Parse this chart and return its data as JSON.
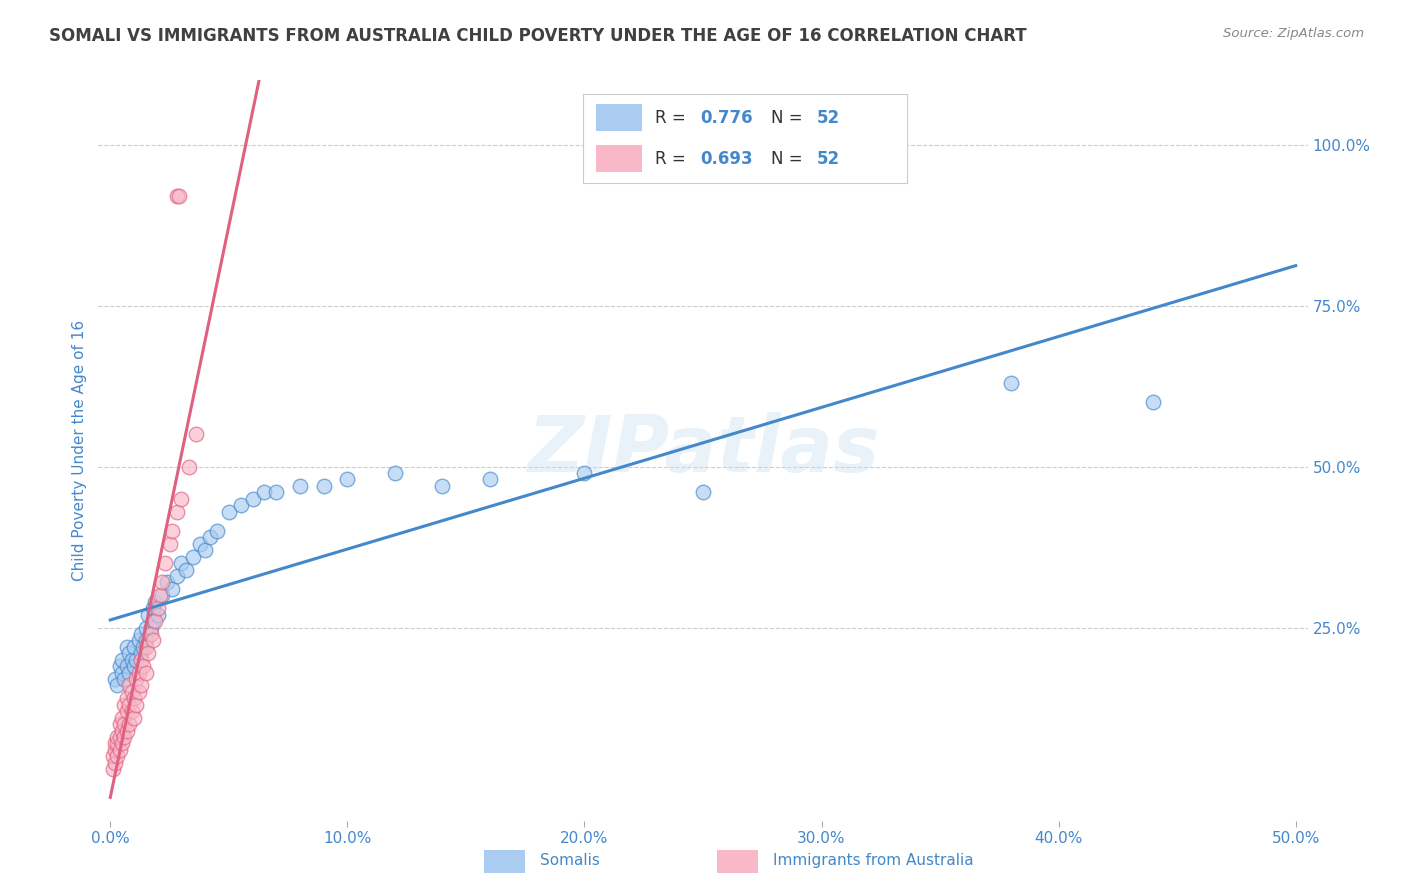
{
  "title": "SOMALI VS IMMIGRANTS FROM AUSTRALIA CHILD POVERTY UNDER THE AGE OF 16 CORRELATION CHART",
  "source": "Source: ZipAtlas.com",
  "ylabel_label": "Child Poverty Under the Age of 16",
  "x_tick_labels": [
    "0.0%",
    "10.0%",
    "20.0%",
    "30.0%",
    "40.0%",
    "50.0%"
  ],
  "x_tick_vals": [
    0.0,
    0.1,
    0.2,
    0.3,
    0.4,
    0.5
  ],
  "y_tick_labels": [
    "100.0%",
    "75.0%",
    "50.0%",
    "25.0%"
  ],
  "y_tick_vals": [
    1.0,
    0.75,
    0.5,
    0.25
  ],
  "xlim": [
    -0.005,
    0.505
  ],
  "ylim": [
    -0.05,
    1.1
  ],
  "somali_R": "0.776",
  "somali_N": "52",
  "australia_R": "0.693",
  "australia_N": "52",
  "legend_label_somali": "Somalis",
  "legend_label_australia": "Immigrants from Australia",
  "color_somali": "#aaccf0",
  "color_australia": "#f8b8c8",
  "line_color_somali": "#4488cc",
  "line_color_australia": "#e06080",
  "watermark": "ZIPatlas",
  "background_color": "#ffffff",
  "grid_color": "#cccccc",
  "title_color": "#404040",
  "axis_label_color": "#4488cc",
  "tick_label_color": "#4488cc",
  "somali_x": [
    0.002,
    0.003,
    0.004,
    0.005,
    0.005,
    0.006,
    0.007,
    0.007,
    0.008,
    0.008,
    0.009,
    0.01,
    0.01,
    0.011,
    0.012,
    0.013,
    0.013,
    0.014,
    0.015,
    0.015,
    0.016,
    0.017,
    0.018,
    0.018,
    0.019,
    0.02,
    0.022,
    0.024,
    0.026,
    0.028,
    0.03,
    0.032,
    0.035,
    0.038,
    0.04,
    0.042,
    0.045,
    0.05,
    0.055,
    0.06,
    0.065,
    0.07,
    0.08,
    0.09,
    0.1,
    0.12,
    0.14,
    0.16,
    0.2,
    0.25,
    0.38,
    0.44
  ],
  "somali_y": [
    0.17,
    0.16,
    0.19,
    0.18,
    0.2,
    0.17,
    0.19,
    0.22,
    0.18,
    0.21,
    0.2,
    0.19,
    0.22,
    0.2,
    0.23,
    0.21,
    0.24,
    0.22,
    0.25,
    0.23,
    0.27,
    0.25,
    0.28,
    0.26,
    0.29,
    0.27,
    0.3,
    0.32,
    0.31,
    0.33,
    0.35,
    0.34,
    0.36,
    0.38,
    0.37,
    0.39,
    0.4,
    0.43,
    0.44,
    0.45,
    0.46,
    0.46,
    0.47,
    0.47,
    0.48,
    0.49,
    0.47,
    0.48,
    0.49,
    0.46,
    0.63,
    0.6
  ],
  "australia_x": [
    0.001,
    0.001,
    0.002,
    0.002,
    0.002,
    0.003,
    0.003,
    0.003,
    0.004,
    0.004,
    0.004,
    0.005,
    0.005,
    0.005,
    0.006,
    0.006,
    0.006,
    0.007,
    0.007,
    0.007,
    0.008,
    0.008,
    0.008,
    0.009,
    0.009,
    0.01,
    0.01,
    0.011,
    0.011,
    0.012,
    0.012,
    0.013,
    0.013,
    0.014,
    0.015,
    0.015,
    0.016,
    0.017,
    0.018,
    0.019,
    0.02,
    0.021,
    0.022,
    0.023,
    0.025,
    0.026,
    0.028,
    0.03,
    0.033,
    0.036,
    0.028,
    0.029
  ],
  "australia_y": [
    0.03,
    0.05,
    0.04,
    0.06,
    0.07,
    0.05,
    0.07,
    0.08,
    0.06,
    0.08,
    0.1,
    0.07,
    0.09,
    0.11,
    0.08,
    0.1,
    0.13,
    0.09,
    0.12,
    0.14,
    0.1,
    0.13,
    0.16,
    0.12,
    0.15,
    0.11,
    0.14,
    0.13,
    0.17,
    0.15,
    0.18,
    0.16,
    0.2,
    0.19,
    0.18,
    0.22,
    0.21,
    0.24,
    0.23,
    0.26,
    0.28,
    0.3,
    0.32,
    0.35,
    0.38,
    0.4,
    0.43,
    0.45,
    0.5,
    0.55,
    0.92,
    0.92
  ]
}
